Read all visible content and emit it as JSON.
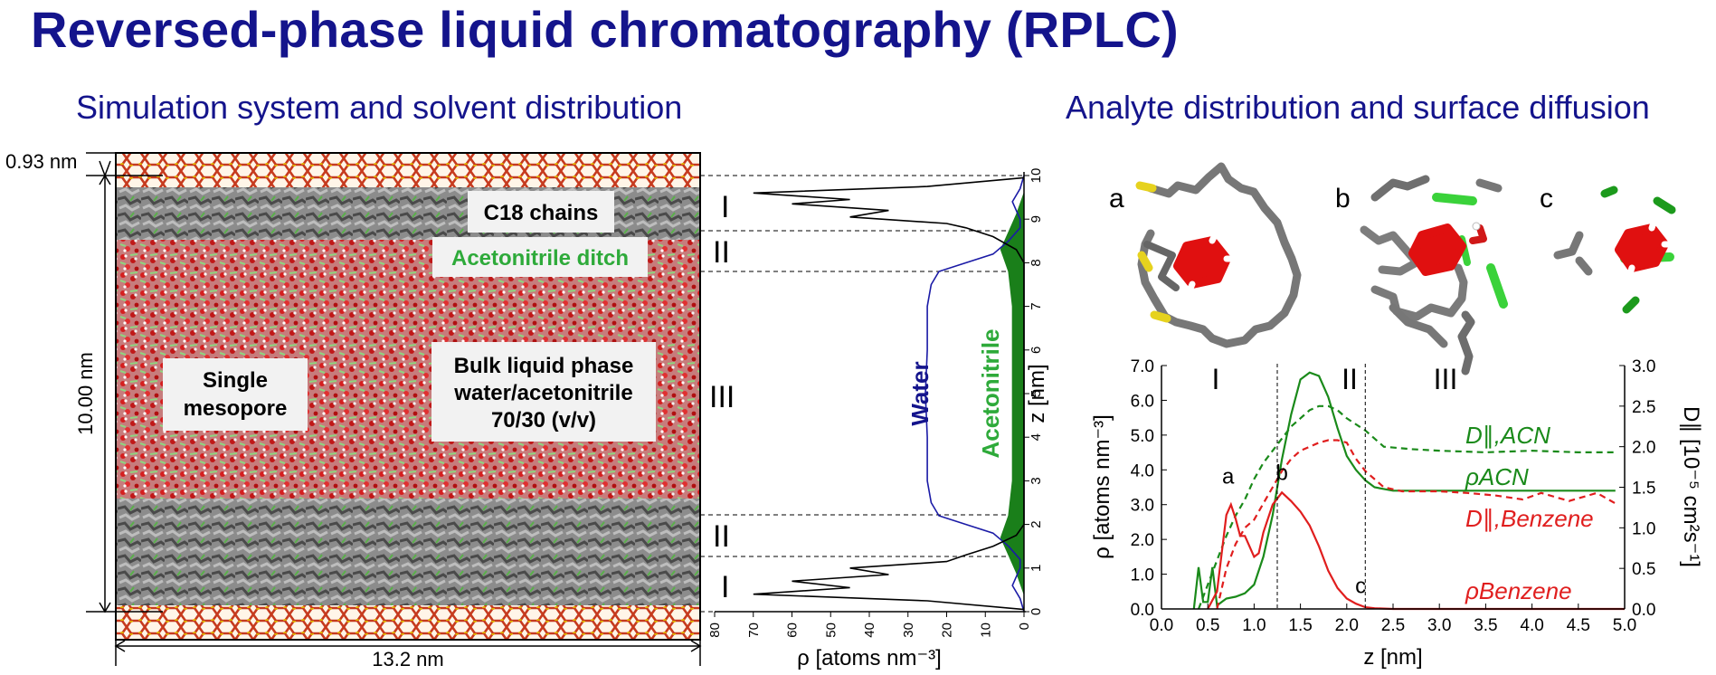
{
  "title": "Reversed-phase liquid chromatography (RPLC)",
  "subtitle_left": "Simulation system and solvent distribution",
  "subtitle_right": "Analyte distribution and surface diffusion",
  "simulation": {
    "dim_top": "0.93 nm",
    "dim_height": "10.00 nm",
    "dim_width": "13.2 nm",
    "box_labels": {
      "c18": "C18 chains",
      "ditch": "Acetonitrile ditch",
      "mesopore_line1": "Single",
      "mesopore_line2": "mesopore",
      "bulk_line1": "Bulk liquid phase",
      "bulk_line2": "water/acetonitrile",
      "bulk_line3": "70/30 (v/v)"
    },
    "regions": [
      "I",
      "II",
      "III",
      "II",
      "I"
    ]
  },
  "chart_data": [
    {
      "type": "line",
      "xlabel": "ρ  [atoms nm⁻³]",
      "ylabel": "z [nm]",
      "x_ticks": [
        "80",
        "70",
        "60",
        "50",
        "40",
        "30",
        "20",
        "10",
        "0"
      ],
      "y_ticks": [
        "0",
        "1",
        "2",
        "3",
        "4",
        "5",
        "6",
        "7",
        "8",
        "9",
        "10"
      ],
      "xlim": [
        80,
        0
      ],
      "ylim": [
        0,
        10
      ],
      "series": [
        {
          "name": "Water",
          "color": "#1a1aa6",
          "points": [
            [
              0,
              0
            ],
            [
              1,
              0.3
            ],
            [
              3,
              0.6
            ],
            [
              1,
              1.0
            ],
            [
              1,
              1.2
            ],
            [
              4,
              1.5
            ],
            [
              8,
              1.8
            ],
            [
              15,
              2.0
            ],
            [
              22,
              2.2
            ],
            [
              24,
              2.5
            ],
            [
              25,
              3
            ],
            [
              25,
              4
            ],
            [
              25.5,
              5
            ],
            [
              25,
              6
            ],
            [
              25,
              7
            ],
            [
              24,
              7.5
            ],
            [
              22,
              7.8
            ],
            [
              15,
              8.0
            ],
            [
              8,
              8.2
            ],
            [
              4,
              8.5
            ],
            [
              1,
              8.8
            ],
            [
              1,
              9.0
            ],
            [
              3,
              9.4
            ],
            [
              1,
              9.7
            ],
            [
              0,
              10
            ]
          ]
        },
        {
          "name": "Acetonitrile",
          "color": "#1a7f1a",
          "points": [
            [
              0,
              0.4
            ],
            [
              2,
              0.9
            ],
            [
              4,
              1.3
            ],
            [
              6,
              1.7
            ],
            [
              4,
              2.2
            ],
            [
              3,
              3
            ],
            [
              3,
              4
            ],
            [
              3,
              5
            ],
            [
              3,
              6
            ],
            [
              3,
              7
            ],
            [
              4,
              7.8
            ],
            [
              6,
              8.3
            ],
            [
              4,
              8.7
            ],
            [
              2,
              9.1
            ],
            [
              0,
              9.6
            ]
          ]
        },
        {
          "name": "C18",
          "color": "#000000",
          "points": [
            [
              0,
              0.05
            ],
            [
              25,
              0.25
            ],
            [
              70,
              0.4
            ],
            [
              45,
              0.55
            ],
            [
              60,
              0.7
            ],
            [
              35,
              0.85
            ],
            [
              45,
              1.0
            ],
            [
              20,
              1.15
            ],
            [
              15,
              1.3
            ],
            [
              8,
              1.5
            ],
            [
              2,
              1.75
            ],
            [
              0,
              2.0
            ],
            [
              0,
              8.0
            ],
            [
              2,
              8.3
            ],
            [
              8,
              8.6
            ],
            [
              15,
              8.8
            ],
            [
              20,
              8.9
            ],
            [
              45,
              9.05
            ],
            [
              35,
              9.2
            ],
            [
              60,
              9.35
            ],
            [
              45,
              9.45
            ],
            [
              70,
              9.6
            ],
            [
              25,
              9.75
            ],
            [
              0,
              9.95
            ]
          ]
        }
      ]
    },
    {
      "type": "line",
      "xlabel": "z [nm]",
      "ylabel": "ρ [atoms nm⁻³]",
      "y2label": "D∥ [10⁻⁵ cm²s⁻¹]",
      "x_ticks": [
        "0.0",
        "0.5",
        "1.0",
        "1.5",
        "2.0",
        "2.5",
        "3.0",
        "3.5",
        "4.0",
        "4.5",
        "5.0"
      ],
      "y_ticks": [
        "0.0",
        "1.0",
        "2.0",
        "3.0",
        "4.0",
        "5.0",
        "6.0",
        "7.0"
      ],
      "y2_ticks": [
        "0.0",
        "0.5",
        "1.0",
        "1.5",
        "2.0",
        "2.5",
        "3.0"
      ],
      "xlim": [
        0,
        5
      ],
      "ylim": [
        0,
        7
      ],
      "y2lim": [
        0,
        3
      ],
      "region_labels": [
        "I",
        "II",
        "III"
      ],
      "region_boundaries": [
        1.25,
        2.2
      ],
      "point_labels": [
        {
          "text": "a",
          "x": 0.72,
          "y": 3.5
        },
        {
          "text": "b",
          "x": 1.3,
          "y": 3.6
        },
        {
          "text": "c",
          "x": 2.15,
          "y": 0.35
        }
      ],
      "series_labels": {
        "d_acn": "D∥,ACN",
        "rho_acn": "ρACN",
        "d_benzene": "D∥,Benzene",
        "rho_benzene": "ρBenzene"
      },
      "series": [
        {
          "name": "ρACN",
          "color": "#1a8a1a",
          "style": "solid",
          "axis": "left",
          "x": [
            0.35,
            0.4,
            0.45,
            0.5,
            0.55,
            0.6,
            0.65,
            0.7,
            0.8,
            0.9,
            1.0,
            1.1,
            1.2,
            1.3,
            1.4,
            1.5,
            1.6,
            1.7,
            1.8,
            1.9,
            2.0,
            2.1,
            2.2,
            2.3,
            2.4,
            2.5,
            2.7,
            3.0,
            3.5,
            4.0,
            4.5,
            4.9
          ],
          "y": [
            0.0,
            1.2,
            0.2,
            0.2,
            1.2,
            0.1,
            0.2,
            0.3,
            0.35,
            0.45,
            0.7,
            1.5,
            2.7,
            4.3,
            5.6,
            6.6,
            6.8,
            6.7,
            6.1,
            5.2,
            4.4,
            4.0,
            3.7,
            3.5,
            3.45,
            3.4,
            3.4,
            3.4,
            3.4,
            3.4,
            3.4,
            3.4
          ]
        },
        {
          "name": "D∥,ACN",
          "color": "#1a8a1a",
          "style": "dashed",
          "axis": "right",
          "x": [
            0.4,
            0.5,
            0.6,
            0.7,
            0.8,
            0.9,
            1.0,
            1.1,
            1.2,
            1.3,
            1.4,
            1.5,
            1.6,
            1.7,
            1.8,
            1.9,
            2.0,
            2.2,
            2.4,
            2.7,
            3.0,
            3.5,
            4.0,
            4.5,
            4.9
          ],
          "y": [
            0.0,
            0.3,
            0.6,
            0.9,
            1.15,
            1.35,
            1.6,
            1.8,
            1.95,
            2.1,
            2.25,
            2.35,
            2.45,
            2.5,
            2.5,
            2.45,
            2.35,
            2.2,
            2.0,
            1.97,
            1.95,
            1.93,
            1.95,
            1.93,
            1.93
          ]
        },
        {
          "name": "ρBenzene",
          "color": "#e01e1e",
          "style": "solid",
          "axis": "left",
          "x": [
            0.5,
            0.6,
            0.7,
            0.75,
            0.8,
            0.85,
            0.9,
            0.95,
            1.0,
            1.05,
            1.1,
            1.2,
            1.3,
            1.4,
            1.5,
            1.6,
            1.7,
            1.8,
            1.9,
            2.0,
            2.1,
            2.2,
            2.3,
            2.5,
            3.0,
            4.0,
            5.0
          ],
          "y": [
            0.0,
            0.5,
            2.7,
            3.0,
            2.6,
            2.1,
            2.1,
            1.8,
            1.5,
            1.6,
            2.2,
            3.0,
            3.35,
            3.1,
            2.8,
            2.4,
            1.8,
            1.1,
            0.6,
            0.3,
            0.15,
            0.05,
            0.02,
            0.0,
            0.0,
            0.0,
            0.0
          ]
        },
        {
          "name": "D∥,Benzene",
          "color": "#e01e1e",
          "style": "dashed",
          "axis": "right",
          "x": [
            0.6,
            0.7,
            0.8,
            0.9,
            1.0,
            1.1,
            1.2,
            1.3,
            1.4,
            1.5,
            1.6,
            1.7,
            1.8,
            1.9,
            2.0,
            2.1,
            2.2,
            2.4,
            2.6,
            3.0,
            3.3,
            3.6,
            3.9,
            4.1,
            4.4,
            4.7,
            4.9
          ],
          "y": [
            0.0,
            0.5,
            0.8,
            1.0,
            1.1,
            1.3,
            1.5,
            1.7,
            1.85,
            1.95,
            2.0,
            2.05,
            2.08,
            2.08,
            2.05,
            1.85,
            1.7,
            1.5,
            1.45,
            1.45,
            1.43,
            1.4,
            1.35,
            1.43,
            1.33,
            1.43,
            1.3
          ]
        }
      ]
    }
  ],
  "molecule_panels": [
    "a",
    "b",
    "c"
  ]
}
